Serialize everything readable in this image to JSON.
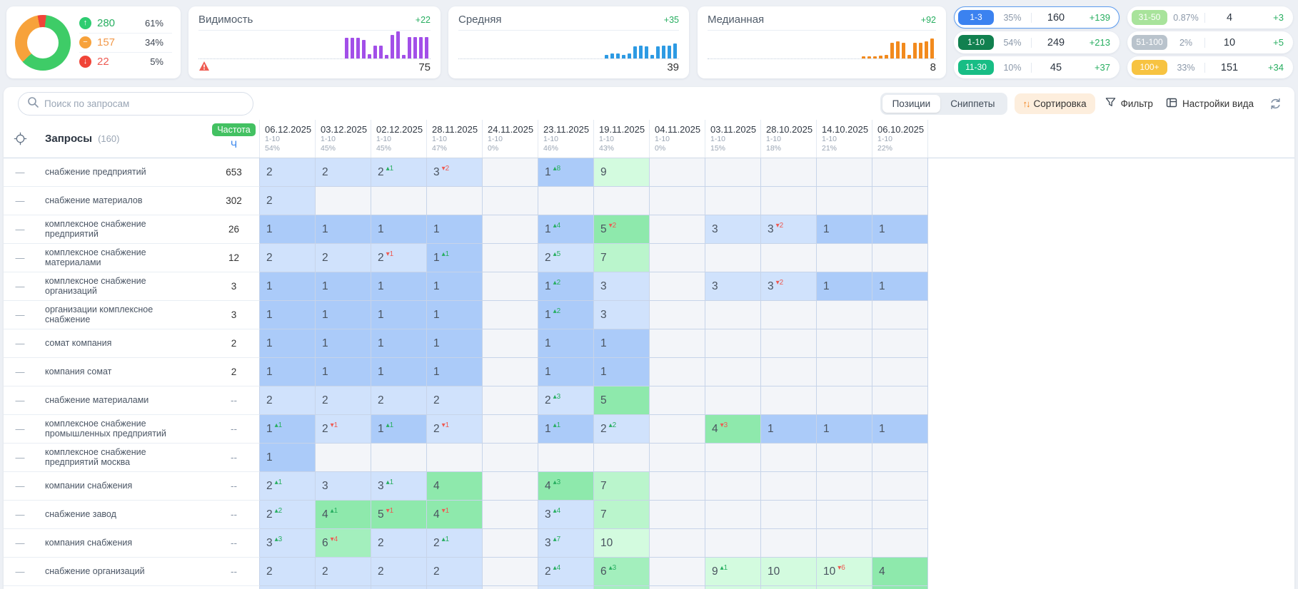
{
  "summary": {
    "donut": {
      "segments": [
        {
          "name": "down",
          "pct": 5,
          "color": "#f04438"
        },
        {
          "name": "up",
          "pct": 61,
          "color": "#3ecc67"
        },
        {
          "name": "same",
          "pct": 34,
          "color": "#f7a23b"
        }
      ]
    },
    "stats": [
      {
        "glyph": "↑",
        "icon_bg": "#2ecc71",
        "value": "280",
        "pct": "61%",
        "color": "#27ae60"
      },
      {
        "glyph": "−",
        "icon_bg": "#f7a23b",
        "value": "157",
        "pct": "34%",
        "color": "#f2994a"
      },
      {
        "glyph": "↓",
        "icon_bg": "#f04438",
        "value": "22",
        "pct": "5%",
        "color": "#ee5a52"
      }
    ]
  },
  "panels": [
    {
      "title": "Видимость",
      "delta": "+22",
      "value": "75",
      "color": "#a24fe8",
      "warning": true,
      "bars": [
        74,
        74,
        74,
        66,
        16,
        46,
        46,
        12,
        84,
        97,
        14,
        76,
        78,
        78,
        78
      ]
    },
    {
      "title": "Средняя",
      "delta": "+35",
      "value": "39",
      "color": "#2d9ae3",
      "warning": false,
      "bars": [
        12,
        17,
        17,
        12,
        19,
        44,
        46,
        44,
        13,
        44,
        47,
        47,
        54
      ]
    },
    {
      "title": "Медианная",
      "delta": "+92",
      "value": "8",
      "color": "#f28a1d",
      "warning": false,
      "bars": [
        9,
        9,
        9,
        11,
        13,
        57,
        62,
        57,
        13,
        57,
        57,
        62,
        72
      ]
    }
  ],
  "range_cards": [
    {
      "label": "1-3",
      "badge_color": "#3b82f0",
      "pct": "35%",
      "value": "160",
      "delta": "+139",
      "selected": true
    },
    {
      "label": "1-10",
      "badge_color": "#11804f",
      "pct": "54%",
      "value": "249",
      "delta": "+213",
      "selected": false
    },
    {
      "label": "11-30",
      "badge_color": "#18bd85",
      "pct": "10%",
      "value": "45",
      "delta": "+37",
      "selected": false
    },
    {
      "label": "31-50",
      "badge_color": "#a8e39b",
      "pct": "0.87%",
      "value": "4",
      "delta": "+3",
      "selected": false
    },
    {
      "label": "51-100",
      "badge_color": "#b9c3cc",
      "pct": "2%",
      "value": "10",
      "delta": "+5",
      "selected": false
    },
    {
      "label": "100+",
      "badge_color": "#f7c341",
      "pct": "33%",
      "value": "151",
      "delta": "+34",
      "selected": false
    }
  ],
  "toolbar": {
    "search_placeholder": "Поиск по запросам",
    "tabs": [
      {
        "label": "Позиции",
        "active": true
      },
      {
        "label": "Сниппеты",
        "active": false
      }
    ],
    "sort_icon": "↑↓",
    "sort_label": "Сортировка",
    "filter_label": "Фильтр",
    "view_label": "Настройки вида"
  },
  "table": {
    "queries_label": "Запросы",
    "queries_count": "(160)",
    "freq_label": "Частота",
    "freq_sub": "Ч",
    "row_marker": "—",
    "cell_colors": {
      "db": "#abcbf9",
      "lb": "#d0e2fc",
      "g": "#8ee9ac",
      "g6": "#a3efbd",
      "lg": "#baf5cc",
      "pg": "#d3fbdf",
      "empty": "#f3f5f9"
    },
    "columns": [
      {
        "date": "06.12.2025",
        "range": "1-10",
        "pct": "54%"
      },
      {
        "date": "03.12.2025",
        "range": "1-10",
        "pct": "45%"
      },
      {
        "date": "02.12.2025",
        "range": "1-10",
        "pct": "45%"
      },
      {
        "date": "28.11.2025",
        "range": "1-10",
        "pct": "47%"
      },
      {
        "date": "24.11.2025",
        "range": "1-10",
        "pct": "0%"
      },
      {
        "date": "23.11.2025",
        "range": "1-10",
        "pct": "46%"
      },
      {
        "date": "19.11.2025",
        "range": "1-10",
        "pct": "43%"
      },
      {
        "date": "04.11.2025",
        "range": "1-10",
        "pct": "0%"
      },
      {
        "date": "03.11.2025",
        "range": "1-10",
        "pct": "15%"
      },
      {
        "date": "28.10.2025",
        "range": "1-10",
        "pct": "18%"
      },
      {
        "date": "14.10.2025",
        "range": "1-10",
        "pct": "21%"
      },
      {
        "date": "06.10.2025",
        "range": "1-10",
        "pct": "22%"
      }
    ],
    "rows": [
      {
        "query": "снабжение предприятий",
        "freq": "653",
        "cells": [
          {
            "v": "2",
            "bg": "lb"
          },
          {
            "v": "2",
            "bg": "lb"
          },
          {
            "v": "2",
            "bg": "lb",
            "d": "1",
            "dir": "up"
          },
          {
            "v": "3",
            "bg": "lb",
            "d": "2",
            "dir": "down"
          },
          null,
          {
            "v": "1",
            "bg": "db",
            "d": "8",
            "dir": "up"
          },
          {
            "v": "9",
            "bg": "pg"
          },
          null,
          null,
          null,
          null,
          null
        ]
      },
      {
        "query": "снабжение материалов",
        "freq": "302",
        "cells": [
          {
            "v": "2",
            "bg": "lb"
          },
          null,
          null,
          null,
          null,
          null,
          null,
          null,
          null,
          null,
          null,
          null
        ]
      },
      {
        "query": "комплексное снабжение предприятий",
        "freq": "26",
        "cells": [
          {
            "v": "1",
            "bg": "db"
          },
          {
            "v": "1",
            "bg": "db"
          },
          {
            "v": "1",
            "bg": "db"
          },
          {
            "v": "1",
            "bg": "db"
          },
          null,
          {
            "v": "1",
            "bg": "db",
            "d": "4",
            "dir": "up"
          },
          {
            "v": "5",
            "bg": "g",
            "d": "2",
            "dir": "down"
          },
          null,
          {
            "v": "3",
            "bg": "lb"
          },
          {
            "v": "3",
            "bg": "lb",
            "d": "2",
            "dir": "down"
          },
          {
            "v": "1",
            "bg": "db"
          },
          {
            "v": "1",
            "bg": "db"
          }
        ]
      },
      {
        "query": "комплексное снабжение материалами",
        "freq": "12",
        "cells": [
          {
            "v": "2",
            "bg": "lb"
          },
          {
            "v": "2",
            "bg": "lb"
          },
          {
            "v": "2",
            "bg": "lb",
            "d": "1",
            "dir": "down"
          },
          {
            "v": "1",
            "bg": "db",
            "d": "1",
            "dir": "up"
          },
          null,
          {
            "v": "2",
            "bg": "lb",
            "d": "5",
            "dir": "up"
          },
          {
            "v": "7",
            "bg": "lg"
          },
          null,
          null,
          null,
          null,
          null
        ]
      },
      {
        "query": "комплексное снабжение организаций",
        "freq": "3",
        "cells": [
          {
            "v": "1",
            "bg": "db"
          },
          {
            "v": "1",
            "bg": "db"
          },
          {
            "v": "1",
            "bg": "db"
          },
          {
            "v": "1",
            "bg": "db"
          },
          null,
          {
            "v": "1",
            "bg": "db",
            "d": "2",
            "dir": "up"
          },
          {
            "v": "3",
            "bg": "lb"
          },
          null,
          {
            "v": "3",
            "bg": "lb"
          },
          {
            "v": "3",
            "bg": "lb",
            "d": "2",
            "dir": "down"
          },
          {
            "v": "1",
            "bg": "db"
          },
          {
            "v": "1",
            "bg": "db"
          }
        ]
      },
      {
        "query": "организации комплексное снабжение",
        "freq": "3",
        "cells": [
          {
            "v": "1",
            "bg": "db"
          },
          {
            "v": "1",
            "bg": "db"
          },
          {
            "v": "1",
            "bg": "db"
          },
          {
            "v": "1",
            "bg": "db"
          },
          null,
          {
            "v": "1",
            "bg": "db",
            "d": "2",
            "dir": "up"
          },
          {
            "v": "3",
            "bg": "lb"
          },
          null,
          null,
          null,
          null,
          null
        ]
      },
      {
        "query": "сомат компания",
        "freq": "2",
        "cells": [
          {
            "v": "1",
            "bg": "db"
          },
          {
            "v": "1",
            "bg": "db"
          },
          {
            "v": "1",
            "bg": "db"
          },
          {
            "v": "1",
            "bg": "db"
          },
          null,
          {
            "v": "1",
            "bg": "db"
          },
          {
            "v": "1",
            "bg": "db"
          },
          null,
          null,
          null,
          null,
          null
        ]
      },
      {
        "query": "компания сомат",
        "freq": "2",
        "cells": [
          {
            "v": "1",
            "bg": "db"
          },
          {
            "v": "1",
            "bg": "db"
          },
          {
            "v": "1",
            "bg": "db"
          },
          {
            "v": "1",
            "bg": "db"
          },
          null,
          {
            "v": "1",
            "bg": "db"
          },
          {
            "v": "1",
            "bg": "db"
          },
          null,
          null,
          null,
          null,
          null
        ]
      },
      {
        "query": "снабжение материалами",
        "freq": "--",
        "cells": [
          {
            "v": "2",
            "bg": "lb"
          },
          {
            "v": "2",
            "bg": "lb"
          },
          {
            "v": "2",
            "bg": "lb"
          },
          {
            "v": "2",
            "bg": "lb"
          },
          null,
          {
            "v": "2",
            "bg": "lb",
            "d": "3",
            "dir": "up"
          },
          {
            "v": "5",
            "bg": "g"
          },
          null,
          null,
          null,
          null,
          null
        ]
      },
      {
        "query": "комплексное снабжение промышленных предприятий",
        "freq": "--",
        "cells": [
          {
            "v": "1",
            "bg": "db",
            "d": "1",
            "dir": "up"
          },
          {
            "v": "2",
            "bg": "lb",
            "d": "1",
            "dir": "down"
          },
          {
            "v": "1",
            "bg": "db",
            "d": "1",
            "dir": "up"
          },
          {
            "v": "2",
            "bg": "lb",
            "d": "1",
            "dir": "down"
          },
          null,
          {
            "v": "1",
            "bg": "db",
            "d": "1",
            "dir": "up"
          },
          {
            "v": "2",
            "bg": "lb",
            "d": "2",
            "dir": "up"
          },
          null,
          {
            "v": "4",
            "bg": "g",
            "d": "3",
            "dir": "down"
          },
          {
            "v": "1",
            "bg": "db"
          },
          {
            "v": "1",
            "bg": "db"
          },
          {
            "v": "1",
            "bg": "db"
          }
        ]
      },
      {
        "query": "комплексное снабжение предприятий москва",
        "freq": "--",
        "cells": [
          {
            "v": "1",
            "bg": "db"
          },
          null,
          null,
          null,
          null,
          null,
          null,
          null,
          null,
          null,
          null,
          null
        ]
      },
      {
        "query": "компании снабжения",
        "freq": "--",
        "cells": [
          {
            "v": "2",
            "bg": "lb",
            "d": "1",
            "dir": "up"
          },
          {
            "v": "3",
            "bg": "lb"
          },
          {
            "v": "3",
            "bg": "lb",
            "d": "1",
            "dir": "up"
          },
          {
            "v": "4",
            "bg": "g"
          },
          null,
          {
            "v": "4",
            "bg": "g",
            "d": "3",
            "dir": "up"
          },
          {
            "v": "7",
            "bg": "lg"
          },
          null,
          null,
          null,
          null,
          null
        ]
      },
      {
        "query": "снабжение завод",
        "freq": "--",
        "cells": [
          {
            "v": "2",
            "bg": "lb",
            "d": "2",
            "dir": "up"
          },
          {
            "v": "4",
            "bg": "g",
            "d": "1",
            "dir": "up"
          },
          {
            "v": "5",
            "bg": "g",
            "d": "1",
            "dir": "down"
          },
          {
            "v": "4",
            "bg": "g",
            "d": "1",
            "dir": "down"
          },
          null,
          {
            "v": "3",
            "bg": "lb",
            "d": "4",
            "dir": "up"
          },
          {
            "v": "7",
            "bg": "lg"
          },
          null,
          null,
          null,
          null,
          null
        ]
      },
      {
        "query": "компания снабжения",
        "freq": "--",
        "cells": [
          {
            "v": "3",
            "bg": "lb",
            "d": "3",
            "dir": "up"
          },
          {
            "v": "6",
            "bg": "g6",
            "d": "4",
            "dir": "down"
          },
          {
            "v": "2",
            "bg": "lb"
          },
          {
            "v": "2",
            "bg": "lb",
            "d": "1",
            "dir": "up"
          },
          null,
          {
            "v": "3",
            "bg": "lb",
            "d": "7",
            "dir": "up"
          },
          {
            "v": "10",
            "bg": "pg"
          },
          null,
          null,
          null,
          null,
          null
        ]
      },
      {
        "query": "снабжение организаций",
        "freq": "--",
        "cells": [
          {
            "v": "2",
            "bg": "lb"
          },
          {
            "v": "2",
            "bg": "lb"
          },
          {
            "v": "2",
            "bg": "lb"
          },
          {
            "v": "2",
            "bg": "lb"
          },
          null,
          {
            "v": "2",
            "bg": "lb",
            "d": "4",
            "dir": "up"
          },
          {
            "v": "6",
            "bg": "g6",
            "d": "3",
            "dir": "up"
          },
          null,
          {
            "v": "9",
            "bg": "pg",
            "d": "1",
            "dir": "up"
          },
          {
            "v": "10",
            "bg": "pg"
          },
          {
            "v": "10",
            "bg": "pg",
            "d": "6",
            "dir": "down"
          },
          {
            "v": "4",
            "bg": "g"
          }
        ]
      }
    ],
    "partial_row": [
      "lb",
      "lb",
      "lb",
      "lb",
      null,
      "lb",
      "g6",
      null,
      "pg",
      "pg",
      "pg",
      "g"
    ]
  }
}
